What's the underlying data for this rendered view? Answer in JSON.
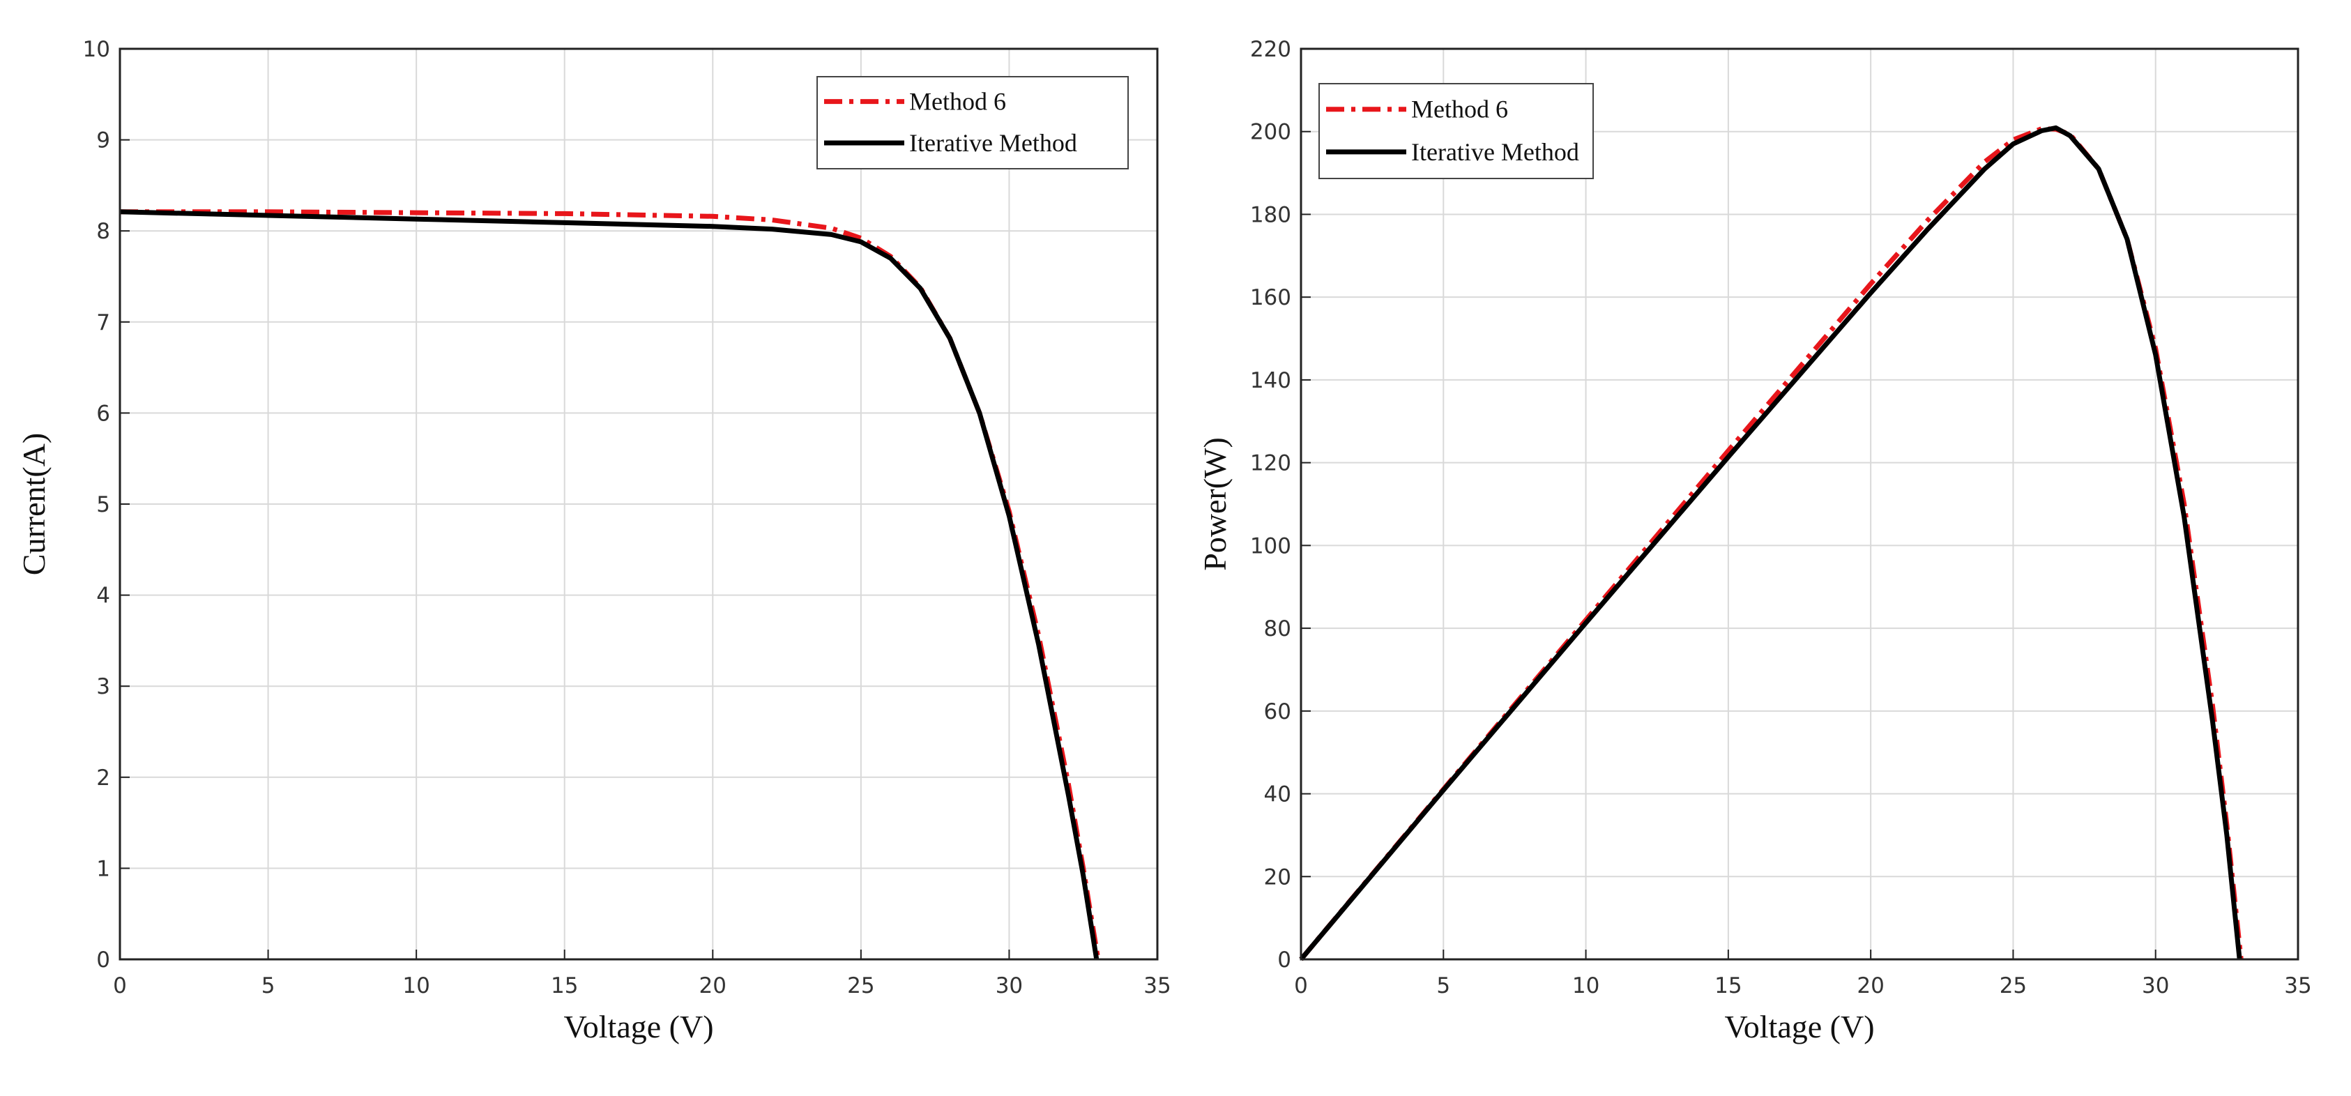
{
  "colors": {
    "method6": "#e8161b",
    "iterative": "#000000",
    "grid": "#d9d9d9",
    "axis": "#222222"
  },
  "chart_data": [
    {
      "type": "line",
      "title": "",
      "xlabel": "Voltage (V)",
      "ylabel": "Current(A)",
      "xlim": [
        0,
        35
      ],
      "ylim": [
        0,
        10
      ],
      "xticks": [
        0,
        5,
        10,
        15,
        20,
        25,
        30,
        35
      ],
      "yticks": [
        0,
        1,
        2,
        3,
        4,
        5,
        6,
        7,
        8,
        9,
        10
      ],
      "grid": true,
      "legend_position": "top-right",
      "series": [
        {
          "name": "Method 6",
          "style": "dash-dot",
          "color_key": "method6",
          "x": [
            0,
            5,
            10,
            15,
            20,
            22,
            24,
            25,
            26,
            27,
            28,
            29,
            30,
            31,
            32,
            32.5,
            33
          ],
          "y": [
            8.21,
            8.21,
            8.2,
            8.19,
            8.16,
            8.12,
            8.03,
            7.92,
            7.72,
            7.38,
            6.82,
            6.0,
            4.92,
            3.55,
            1.92,
            1.0,
            0
          ]
        },
        {
          "name": "Iterative Method",
          "style": "solid",
          "color_key": "iterative",
          "x": [
            0,
            5,
            10,
            15,
            20,
            22,
            24,
            25,
            26,
            27,
            28,
            29,
            30,
            31,
            32,
            32.5,
            32.95
          ],
          "y": [
            8.21,
            8.17,
            8.13,
            8.09,
            8.05,
            8.02,
            7.96,
            7.88,
            7.7,
            7.37,
            6.82,
            6.0,
            4.87,
            3.45,
            1.8,
            0.92,
            0
          ]
        }
      ]
    },
    {
      "type": "line",
      "title": "",
      "xlabel": "Voltage (V)",
      "ylabel": "Power(W)",
      "xlim": [
        0,
        35
      ],
      "ylim": [
        0,
        220
      ],
      "xticks": [
        0,
        5,
        10,
        15,
        20,
        25,
        30,
        35
      ],
      "yticks": [
        0,
        20,
        40,
        60,
        80,
        100,
        120,
        140,
        160,
        180,
        200,
        220
      ],
      "grid": true,
      "legend_position": "top-left",
      "series": [
        {
          "name": "Method 6",
          "style": "dash-dot",
          "color_key": "method6",
          "x": [
            0,
            5,
            10,
            15,
            20,
            22,
            24,
            25,
            26,
            26.5,
            27,
            28,
            29,
            30,
            31,
            32,
            32.5,
            33
          ],
          "y": [
            0,
            41.1,
            82.0,
            122.9,
            163.2,
            178.6,
            192.7,
            198.0,
            200.7,
            200.6,
            199.3,
            191.0,
            174.0,
            147.6,
            110.1,
            61.4,
            32.5,
            0
          ]
        },
        {
          "name": "Iterative Method",
          "style": "solid",
          "color_key": "iterative",
          "x": [
            0,
            5,
            10,
            15,
            20,
            22,
            24,
            25,
            26,
            26.5,
            27,
            28,
            29,
            30,
            31,
            32,
            32.5,
            32.95
          ],
          "y": [
            0,
            40.9,
            81.3,
            121.4,
            161.0,
            176.4,
            191.0,
            197.0,
            200.2,
            200.9,
            199.0,
            191.0,
            174.0,
            146.1,
            107.0,
            57.6,
            30.0,
            0
          ]
        }
      ]
    }
  ]
}
